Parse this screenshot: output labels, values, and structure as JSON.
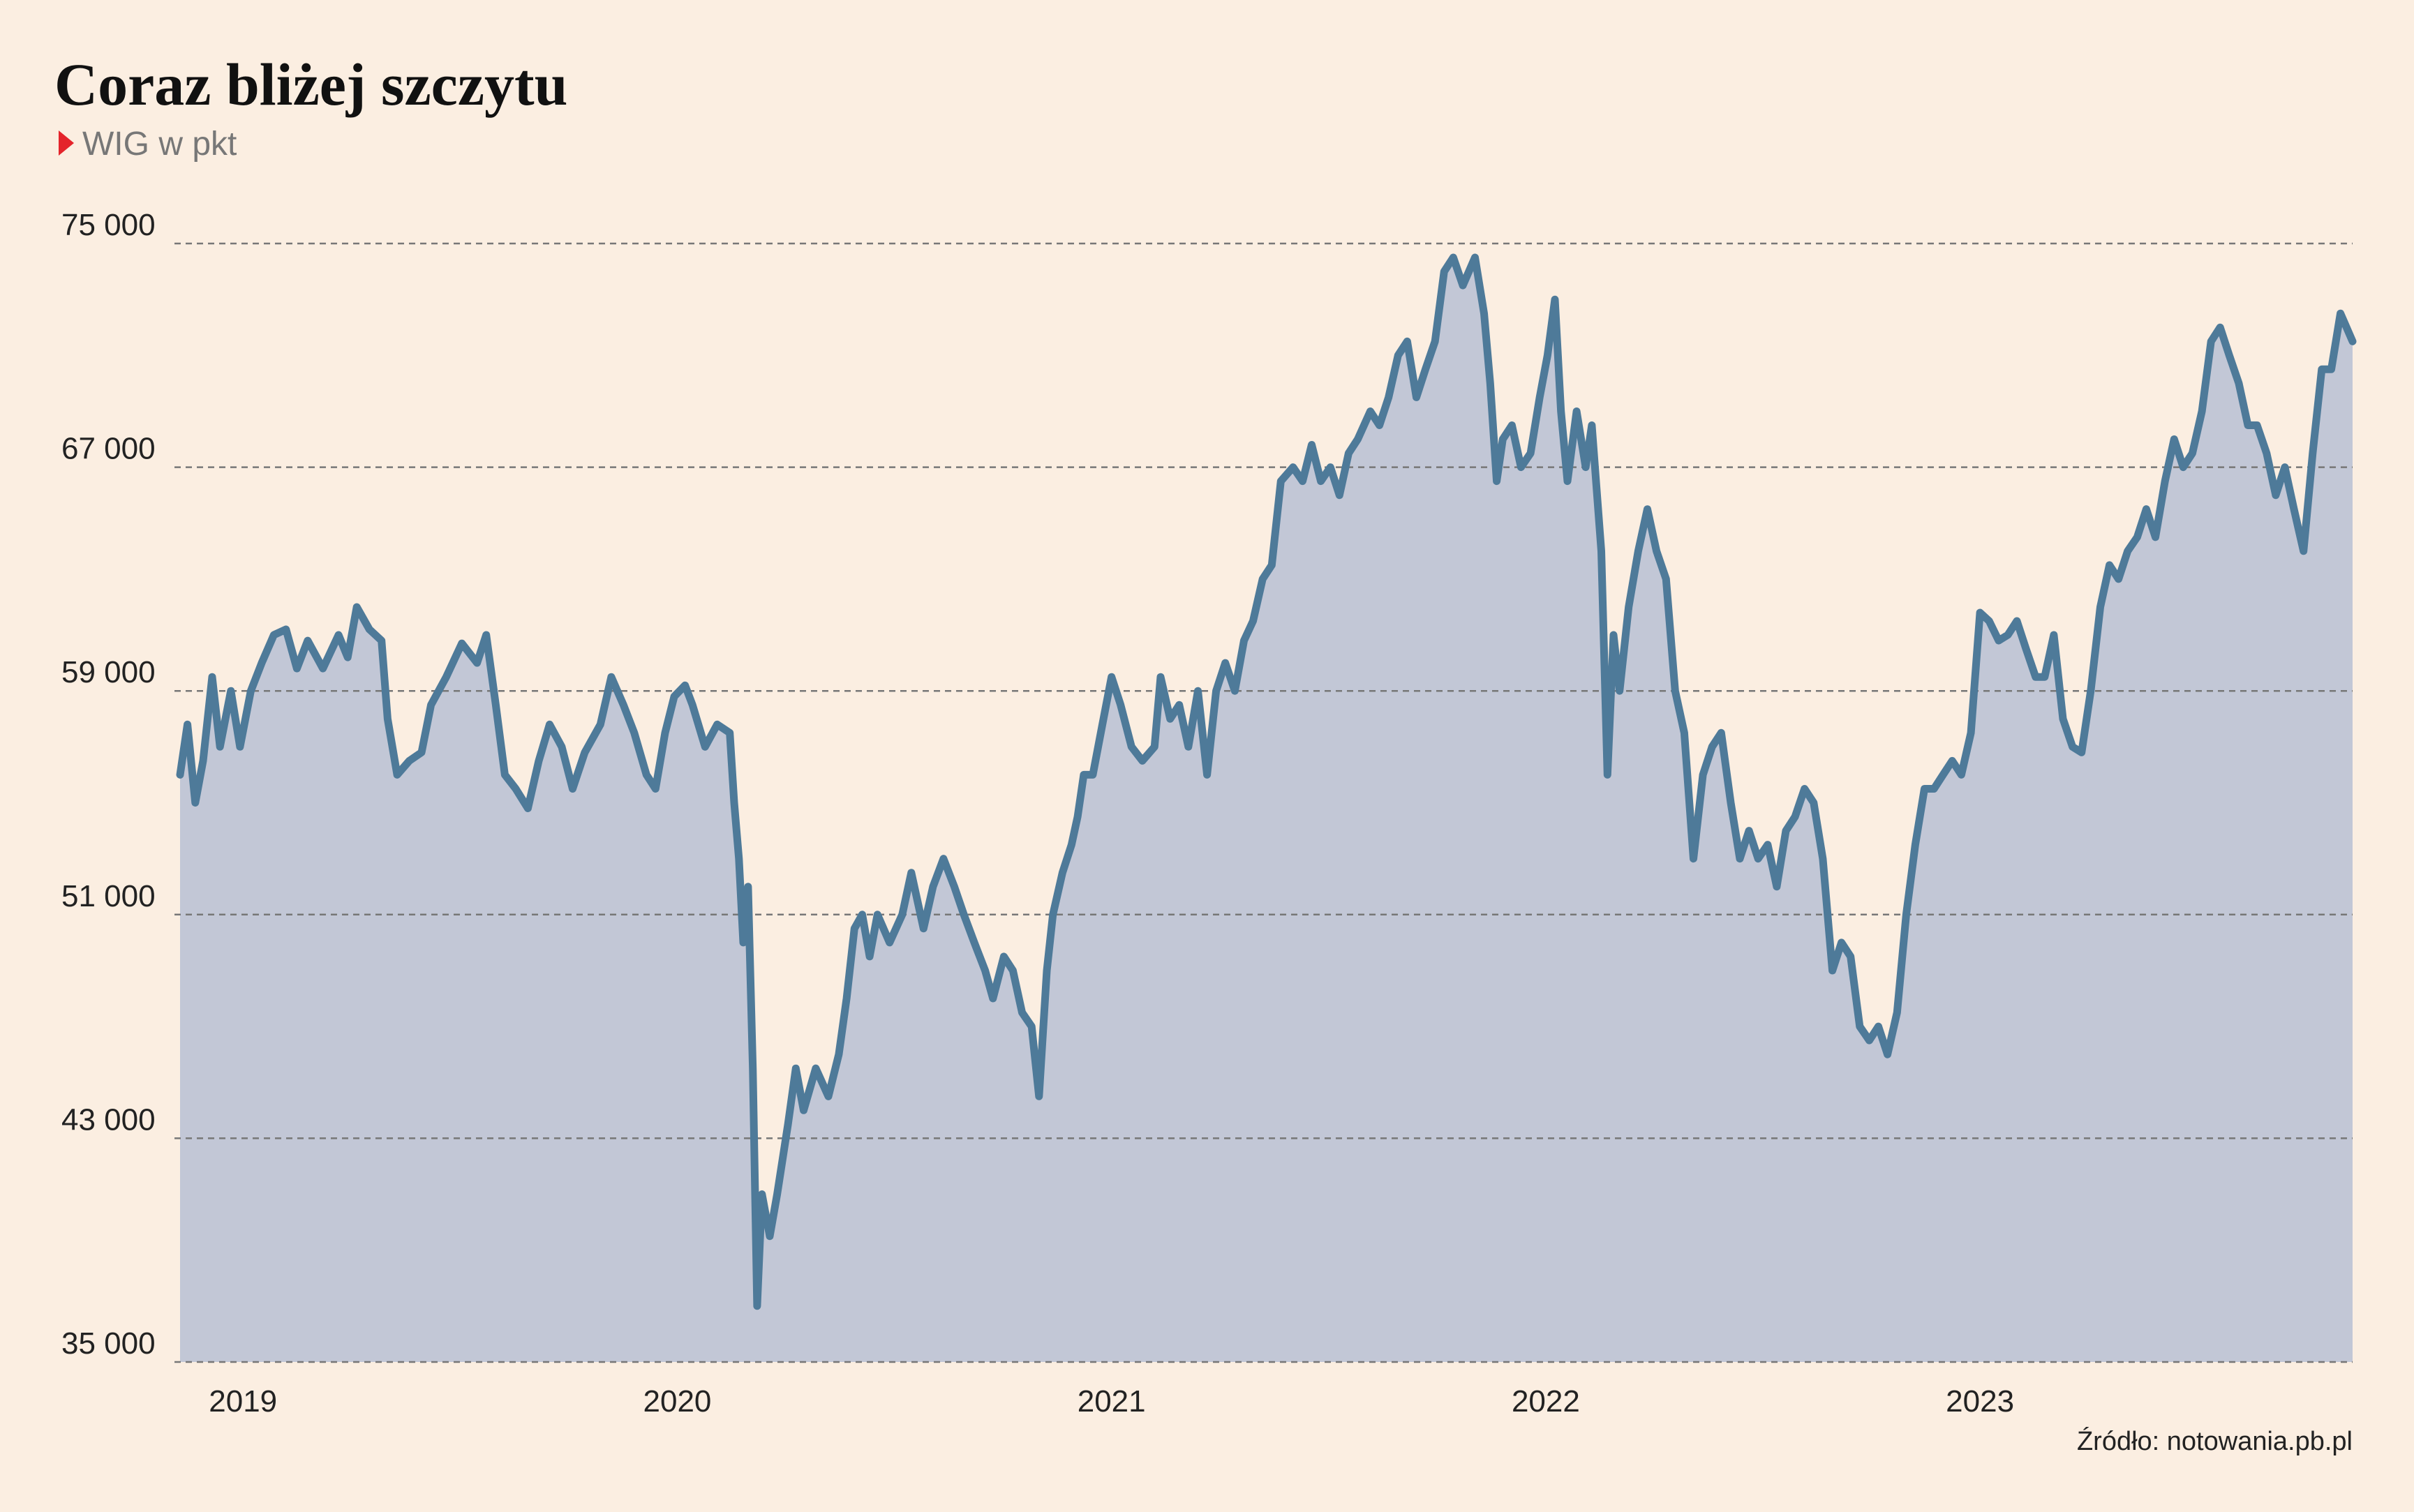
{
  "chart_data": {
    "type": "area",
    "title": "Coraz bliżej szczytu",
    "subtitle": "WIG w pkt",
    "source": "Źródło: notowania.pb.pl",
    "color": "#4e7a99",
    "fill": "#c2c7d6",
    "grid": true,
    "xlim": [
      2018.855,
      2023.858
    ],
    "xticks": [
      2019,
      2020,
      2021,
      2022,
      2023
    ],
    "ylim": [
      35000,
      75000
    ],
    "yticks": [
      {
        "value": 35000,
        "label": "35 000"
      },
      {
        "value": 43000,
        "label": "43 000"
      },
      {
        "value": 51000,
        "label": "51 000"
      },
      {
        "value": 59000,
        "label": "59 000"
      },
      {
        "value": 67000,
        "label": "67 000"
      },
      {
        "value": 75000,
        "label": "75 000"
      }
    ],
    "x": [
      2018.855,
      2018.872,
      2018.89,
      2018.908,
      2018.929,
      2018.947,
      2018.972,
      2018.993,
      2019.018,
      2019.043,
      2019.071,
      2019.099,
      2019.124,
      2019.149,
      2019.184,
      2019.22,
      2019.241,
      2019.262,
      2019.291,
      2019.319,
      2019.333,
      2019.355,
      2019.383,
      2019.411,
      2019.433,
      2019.468,
      2019.504,
      2019.539,
      2019.56,
      2019.582,
      2019.603,
      2019.628,
      2019.656,
      2019.681,
      2019.706,
      2019.734,
      2019.759,
      2019.787,
      2019.823,
      2019.848,
      2019.876,
      2019.901,
      2019.929,
      2019.95,
      2019.972,
      2019.993,
      2020.018,
      2020.035,
      2020.064,
      2020.092,
      2020.121,
      2020.131,
      2020.142,
      2020.152,
      2020.163,
      2020.174,
      2020.184,
      2020.195,
      2020.213,
      2020.23,
      2020.255,
      2020.273,
      2020.291,
      2020.319,
      2020.348,
      2020.372,
      2020.39,
      2020.408,
      2020.426,
      2020.443,
      2020.461,
      2020.489,
      2020.518,
      2020.539,
      2020.567,
      2020.589,
      2020.613,
      2020.638,
      2020.66,
      2020.684,
      2020.709,
      2020.727,
      2020.752,
      2020.773,
      2020.794,
      2020.816,
      2020.833,
      2020.851,
      2020.865,
      2020.887,
      2020.908,
      2020.922,
      2020.936,
      2020.957,
      2020.979,
      2021.0,
      2021.021,
      2021.046,
      2021.071,
      2021.099,
      2021.113,
      2021.135,
      2021.156,
      2021.177,
      2021.199,
      2021.22,
      2021.241,
      2021.262,
      2021.284,
      2021.305,
      2021.326,
      2021.348,
      2021.369,
      2021.39,
      2021.418,
      2021.44,
      2021.461,
      2021.482,
      2021.504,
      2021.525,
      2021.546,
      2021.567,
      2021.596,
      2021.617,
      2021.638,
      2021.66,
      2021.681,
      2021.702,
      2021.723,
      2021.745,
      2021.766,
      2021.787,
      2021.809,
      2021.837,
      2021.858,
      2021.872,
      2021.887,
      2021.901,
      2021.922,
      2021.943,
      2021.965,
      2021.986,
      2022.004,
      2022.021,
      2022.035,
      2022.05,
      2022.071,
      2022.092,
      2022.106,
      2022.128,
      2022.142,
      2022.156,
      2022.17,
      2022.191,
      2022.213,
      2022.234,
      2022.255,
      2022.277,
      2022.298,
      2022.319,
      2022.34,
      2022.362,
      2022.383,
      2022.404,
      2022.426,
      2022.447,
      2022.468,
      2022.489,
      2022.511,
      2022.532,
      2022.553,
      2022.574,
      2022.596,
      2022.617,
      2022.638,
      2022.66,
      2022.681,
      2022.702,
      2022.723,
      2022.745,
      2022.766,
      2022.787,
      2022.809,
      2022.83,
      2022.851,
      2022.872,
      2022.894,
      2022.915,
      2022.936,
      2022.957,
      2022.979,
      2023.0,
      2023.021,
      2023.043,
      2023.064,
      2023.085,
      2023.106,
      2023.128,
      2023.149,
      2023.17,
      2023.191,
      2023.213,
      2023.234,
      2023.255,
      2023.277,
      2023.298,
      2023.319,
      2023.34,
      2023.362,
      2023.383,
      2023.404,
      2023.426,
      2023.447,
      2023.468,
      2023.489,
      2023.511,
      2023.532,
      2023.553,
      2023.574,
      2023.596,
      2023.617,
      2023.638,
      2023.66,
      2023.681,
      2023.702,
      2023.723,
      2023.745,
      2023.766,
      2023.787,
      2023.809,
      2023.83,
      2023.844,
      2023.858
    ],
    "values": [
      56000,
      57800,
      55000,
      56500,
      59500,
      57000,
      59000,
      57000,
      59000,
      60000,
      61000,
      61200,
      59800,
      60800,
      59800,
      61000,
      60200,
      62000,
      61200,
      60800,
      58000,
      56000,
      56500,
      56800,
      58500,
      59500,
      60700,
      60000,
      61000,
      58500,
      56000,
      55500,
      54800,
      56500,
      57800,
      57000,
      55500,
      56800,
      57800,
      59500,
      58500,
      57500,
      56000,
      55500,
      57500,
      58800,
      59200,
      58500,
      57000,
      57800,
      57500,
      55000,
      53000,
      50000,
      52000,
      45500,
      37000,
      41000,
      39500,
      41000,
      43500,
      45500,
      44000,
      45500,
      44500,
      46000,
      48000,
      50500,
      51000,
      49500,
      51000,
      50000,
      51000,
      52500,
      50500,
      52000,
      53000,
      52000,
      51000,
      50000,
      49000,
      48000,
      49500,
      49000,
      47500,
      47000,
      44500,
      49000,
      51000,
      52500,
      53500,
      54500,
      56000,
      56000,
      57800,
      59500,
      58500,
      57000,
      56500,
      57000,
      59500,
      58000,
      58500,
      57000,
      59000,
      56000,
      59000,
      60000,
      59000,
      60800,
      61500,
      63000,
      63500,
      66500,
      67000,
      66500,
      67800,
      66500,
      67000,
      66000,
      67500,
      68000,
      69000,
      68500,
      69500,
      71000,
      71500,
      69500,
      70500,
      71500,
      74000,
      74500,
      73500,
      74500,
      72500,
      70000,
      66500,
      68000,
      68500,
      67000,
      67500,
      69500,
      71000,
      73000,
      69000,
      66500,
      69000,
      67000,
      68500,
      64000,
      56000,
      61000,
      59000,
      62000,
      64000,
      65500,
      64000,
      63000,
      59000,
      57500,
      53000,
      56000,
      57000,
      57500,
      55000,
      53000,
      54000,
      53000,
      53500,
      52000,
      54000,
      54500,
      55500,
      55000,
      53000,
      49000,
      50000,
      49500,
      47000,
      46500,
      47000,
      46000,
      47500,
      51000,
      53500,
      55500,
      55500,
      56000,
      56500,
      56000,
      57500,
      61800,
      61500,
      60800,
      61000,
      61500,
      60500,
      59500,
      59500,
      61000,
      58000,
      57000,
      56800,
      59000,
      62000,
      63500,
      63000,
      64000,
      64500,
      65500,
      64500,
      66500,
      68000,
      67000,
      67500,
      69000,
      71500,
      72000,
      71000,
      70000,
      68500,
      68500,
      67500,
      66000,
      67000,
      65500,
      64000,
      67500,
      70500,
      70500,
      72500,
      72000,
      71500
    ]
  }
}
